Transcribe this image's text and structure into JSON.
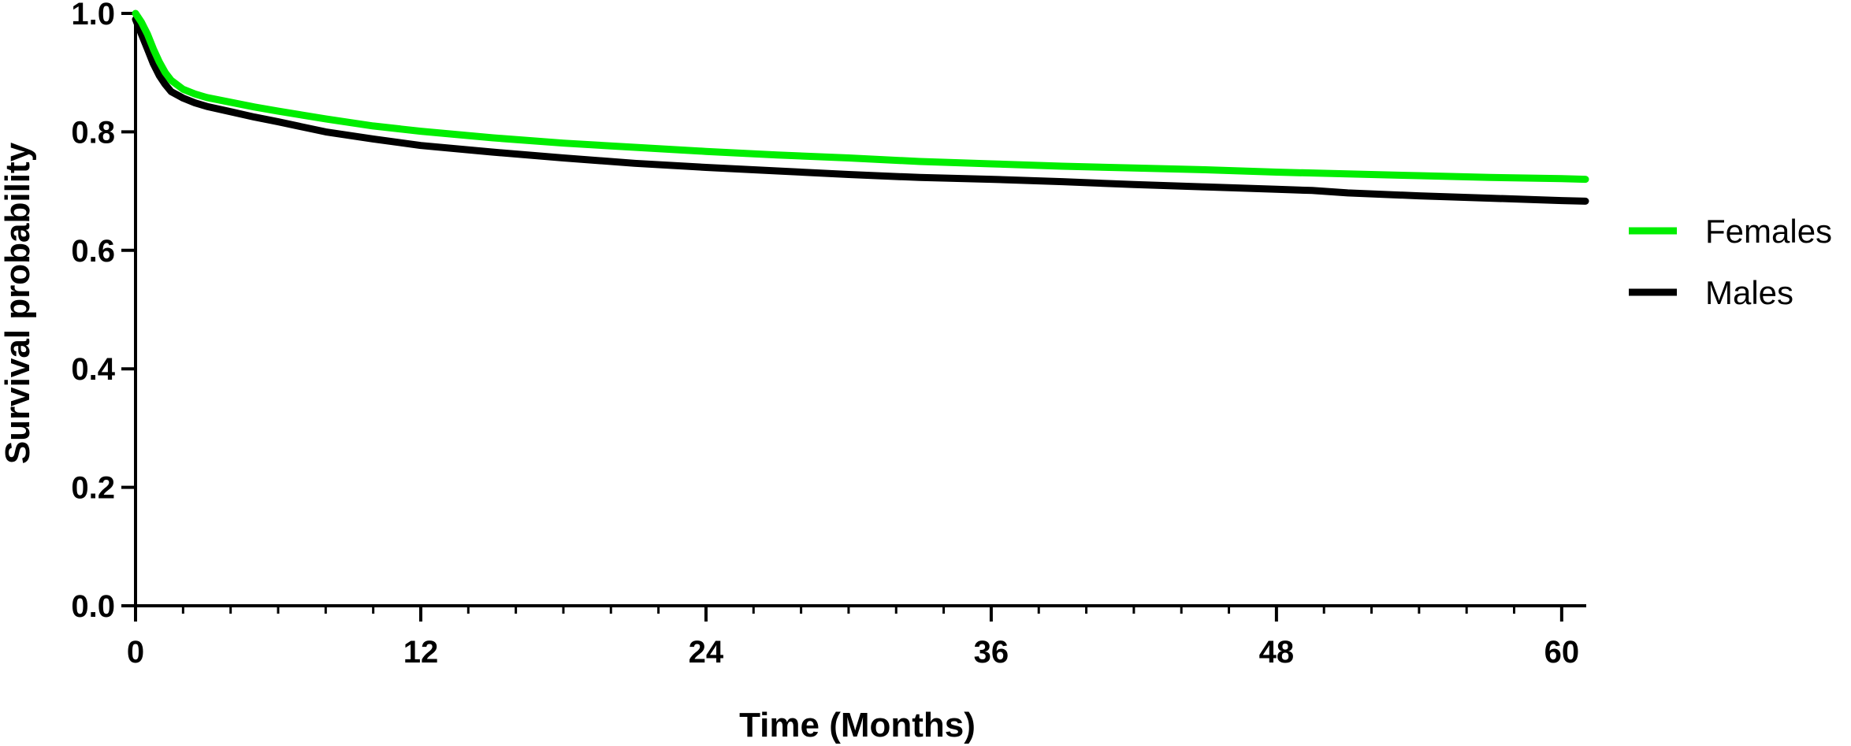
{
  "chart_data": {
    "type": "line",
    "title": "",
    "xlabel": "Time (Months)",
    "ylabel": "Survival probability",
    "xlim": [
      0,
      61
    ],
    "ylim": [
      0,
      1
    ],
    "xticks": [
      0,
      12,
      24,
      36,
      48,
      60
    ],
    "xtick_labels": [
      "0",
      "12",
      "24",
      "36",
      "48",
      "60"
    ],
    "yticks": [
      0,
      0.2,
      0.4,
      0.6,
      0.8,
      1.0
    ],
    "ytick_labels": [
      "0.0",
      "0.2",
      "0.4",
      "0.6",
      "0.8",
      "1.0"
    ],
    "x_minor_tick_step": 2,
    "grid": false,
    "legend_position": "right",
    "series": [
      {
        "name": "Females",
        "color": "#00ee00",
        "x": [
          0,
          0.25,
          0.5,
          0.75,
          1.0,
          1.25,
          1.5,
          2.0,
          2.5,
          3.0,
          4.0,
          5.0,
          6.0,
          8.0,
          10.0,
          12.0,
          15.0,
          18.0,
          21.0,
          24.0,
          27.0,
          30.0,
          33.0,
          36.0,
          39.0,
          42.0,
          45.0,
          48.0,
          51.0,
          54.0,
          57.0,
          60.0,
          61.0
        ],
        "y": [
          1.0,
          0.985,
          0.965,
          0.94,
          0.918,
          0.9,
          0.887,
          0.872,
          0.864,
          0.858,
          0.85,
          0.842,
          0.835,
          0.822,
          0.81,
          0.801,
          0.79,
          0.781,
          0.774,
          0.767,
          0.761,
          0.756,
          0.75,
          0.746,
          0.742,
          0.739,
          0.736,
          0.732,
          0.729,
          0.726,
          0.723,
          0.721,
          0.72
        ]
      },
      {
        "name": "Males",
        "color": "#000000",
        "x": [
          0,
          0.25,
          0.5,
          0.75,
          1.0,
          1.25,
          1.5,
          2.0,
          2.5,
          3.0,
          4.0,
          5.0,
          6.0,
          8.0,
          10.0,
          12.0,
          15.0,
          18.0,
          21.0,
          24.0,
          27.0,
          30.0,
          33.0,
          36.0,
          39.0,
          42.0,
          45.0,
          48.0,
          49.5,
          51.0,
          54.0,
          57.0,
          60.0,
          61.0
        ],
        "y": [
          0.99,
          0.965,
          0.94,
          0.915,
          0.895,
          0.88,
          0.868,
          0.857,
          0.849,
          0.843,
          0.834,
          0.825,
          0.817,
          0.8,
          0.788,
          0.777,
          0.766,
          0.756,
          0.747,
          0.74,
          0.734,
          0.728,
          0.723,
          0.72,
          0.716,
          0.711,
          0.707,
          0.703,
          0.701,
          0.697,
          0.692,
          0.688,
          0.684,
          0.683
        ]
      }
    ]
  }
}
